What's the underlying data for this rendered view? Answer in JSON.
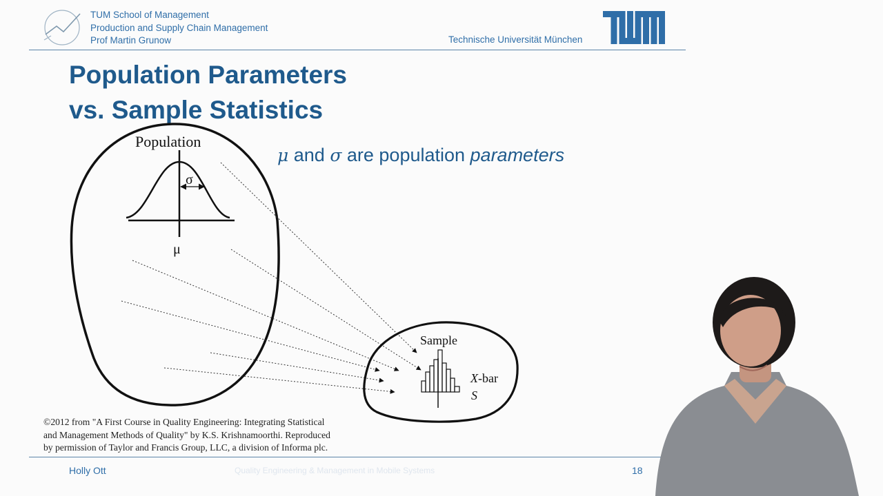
{
  "header": {
    "school_lines": [
      "TUM School of Management",
      "Production and Supply Chain Management",
      "Prof Martin Grunow"
    ],
    "university": "Technische Universität München",
    "logo_icon": "tum-logo-icon",
    "accent_color": "#2f6ea8"
  },
  "title": {
    "line1": "Population Parameters",
    "line2": "vs. Sample Statistics",
    "color": "#1f5a8c"
  },
  "statement": {
    "mu": "μ",
    "and": " and ",
    "sigma": "σ",
    "are": " are population ",
    "emph": "parameters"
  },
  "diagram": {
    "population_label": "Population",
    "sigma_label": "σ",
    "mu_label": "μ",
    "sample_label": "Sample",
    "xbar_x": "X",
    "xbar_rest": "-bar",
    "s_label": "S"
  },
  "copyright": [
    "©2012 from \"A First Course in Quality Engineering: Integrating Statistical",
    "and Management Methods of Quality\" by K.S. Krishnamoorthi. Reproduced",
    "by permission of Taylor and Francis Group, LLC, a division of Informa plc."
  ],
  "footer": {
    "presenter": "Holly Ott",
    "title": "Quality Engineering & Management in Mobile Systems",
    "page": "18"
  }
}
